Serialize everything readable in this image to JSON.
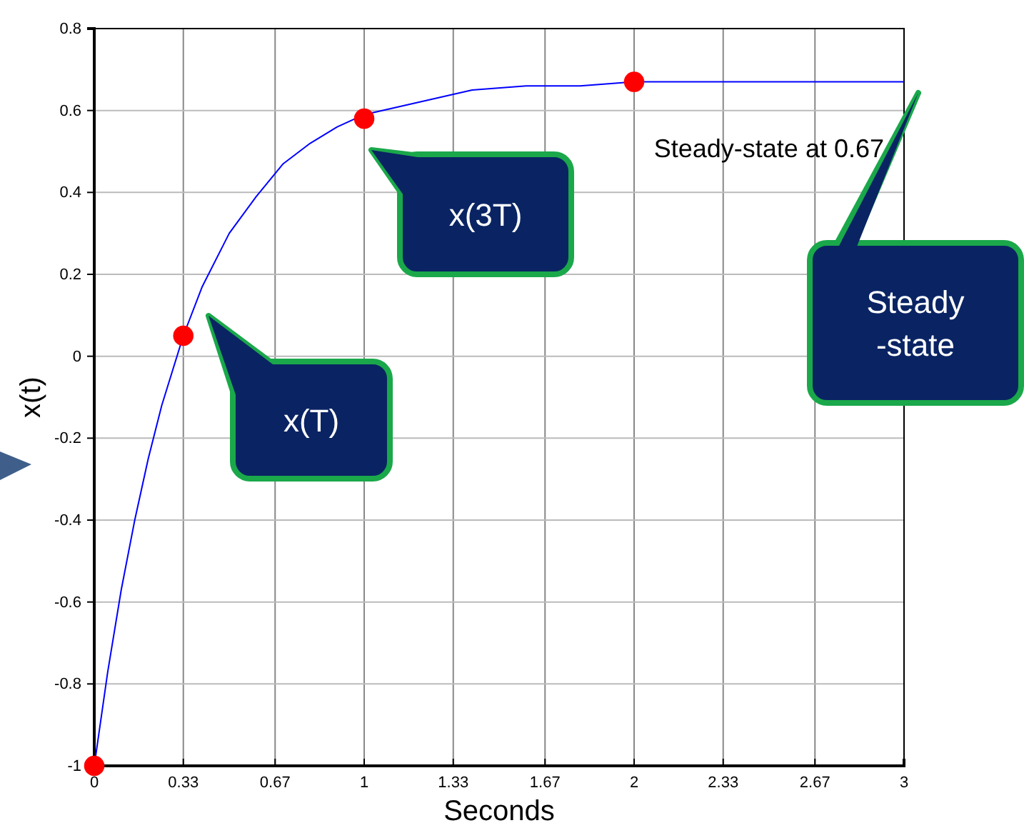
{
  "chart_data": {
    "type": "line",
    "xlabel": "Seconds",
    "ylabel": "x(t)",
    "xlim": [
      0,
      3
    ],
    "xticks": [
      0,
      0.33,
      0.67,
      1,
      1.33,
      1.67,
      2,
      2.33,
      2.67,
      3
    ],
    "ylim": [
      -1,
      0.8
    ],
    "yticks": [
      -1,
      -0.8,
      -0.6,
      -0.4,
      -0.2,
      0,
      0.2,
      0.4,
      0.6,
      0.8
    ],
    "grid": true,
    "series": [
      {
        "color": "#0000ff",
        "x": [
          0,
          0.05,
          0.1,
          0.15,
          0.2,
          0.25,
          0.33,
          0.4,
          0.5,
          0.6,
          0.7,
          0.8,
          0.9,
          1,
          1.2,
          1.4,
          1.6,
          1.8,
          2,
          2.4,
          3
        ],
        "values": [
          -1,
          -0.77,
          -0.57,
          -0.4,
          -0.25,
          -0.12,
          0.05,
          0.17,
          0.3,
          0.39,
          0.47,
          0.52,
          0.56,
          0.59,
          0.62,
          0.65,
          0.66,
          0.66,
          0.67,
          0.67,
          0.67
        ]
      },
      {
        "type": "scatter",
        "color": "#ff0000",
        "marker": "circle",
        "x": [
          0,
          0.33,
          1,
          2
        ],
        "values": [
          -1,
          0.05,
          0.58,
          0.67
        ]
      }
    ],
    "annotations": [
      "x(T)",
      "x(3T)",
      "Steady\n-state",
      "Steady-state at 0.67"
    ]
  }
}
